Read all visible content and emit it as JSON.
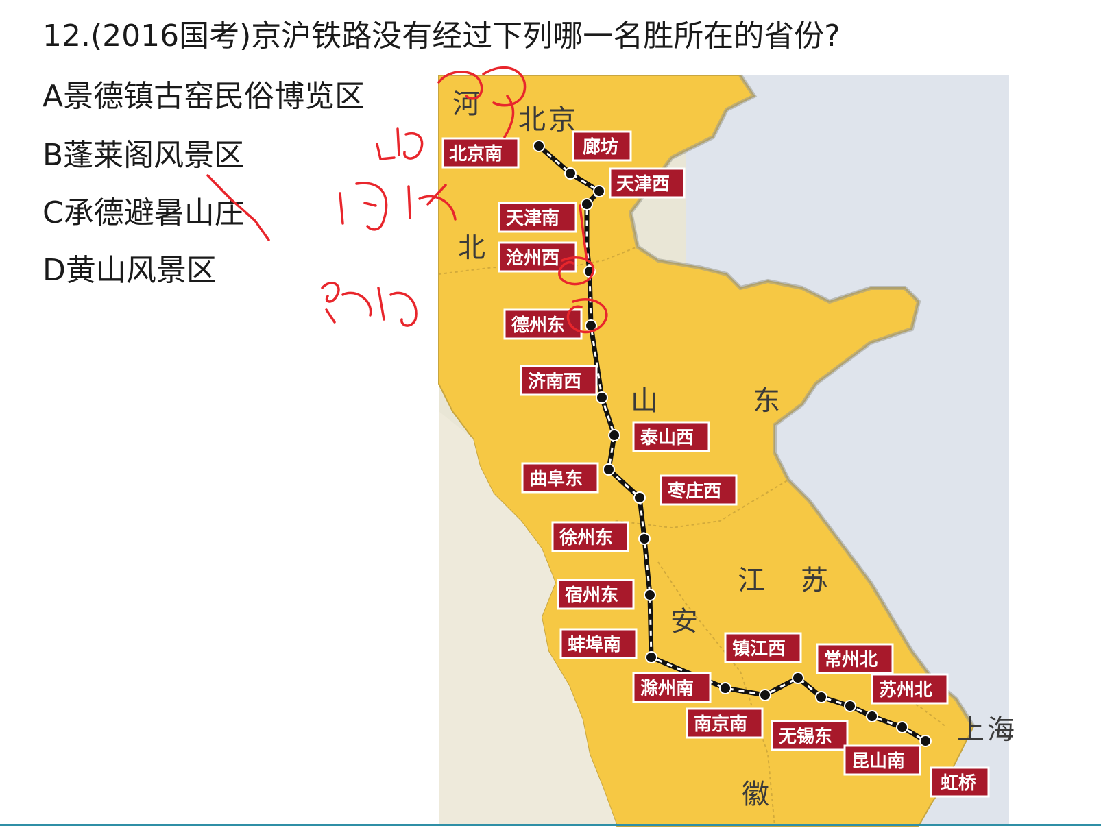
{
  "question": "12.(2016国考)京沪铁路没有经过下列哪一名胜所在的省份?",
  "options": [
    {
      "letter": "A",
      "text": "A景德镇古窑民俗博览区"
    },
    {
      "letter": "B",
      "text": "B蓬莱阁风景区"
    },
    {
      "letter": "C",
      "text": "C承德避暑山庄"
    },
    {
      "letter": "D",
      "text": "D黄山风景区"
    }
  ],
  "map": {
    "provinces": [
      {
        "id": "hebei-he",
        "text": "河"
      },
      {
        "id": "beijing-bei",
        "text": "北"
      },
      {
        "id": "beijing-jing",
        "text": "京"
      },
      {
        "id": "hebei-bei",
        "text": "北"
      },
      {
        "id": "shandong-shan",
        "text": "山"
      },
      {
        "id": "shandong-dong",
        "text": "东"
      },
      {
        "id": "jiangsu-jiang",
        "text": "江"
      },
      {
        "id": "jiangsu-su",
        "text": "苏"
      },
      {
        "id": "anhui-an",
        "text": "安"
      },
      {
        "id": "anhui-hui",
        "text": "徽"
      },
      {
        "id": "shanghai-shang",
        "text": "上"
      },
      {
        "id": "shanghai-hai",
        "text": "海"
      }
    ],
    "stations": [
      {
        "id": "beijingnan",
        "text": "北京南"
      },
      {
        "id": "langfang",
        "text": "廊坊"
      },
      {
        "id": "tianjinxi",
        "text": "天津西"
      },
      {
        "id": "tianjinnan",
        "text": "天津南"
      },
      {
        "id": "cangzhouxi",
        "text": "沧州西"
      },
      {
        "id": "dezhoudong",
        "text": "德州东"
      },
      {
        "id": "jinanxi",
        "text": "济南西"
      },
      {
        "id": "taishanxi",
        "text": "泰山西"
      },
      {
        "id": "qufudong",
        "text": "曲阜东"
      },
      {
        "id": "zaozhuangxi",
        "text": "枣庄西"
      },
      {
        "id": "xuzhoudong",
        "text": "徐州东"
      },
      {
        "id": "suzhoudong",
        "text": "宿州东"
      },
      {
        "id": "bengbunan",
        "text": "蚌埠南"
      },
      {
        "id": "chuzhounan",
        "text": "滁州南"
      },
      {
        "id": "nanjingnan",
        "text": "南京南"
      },
      {
        "id": "zhenjiangxi",
        "text": "镇江西"
      },
      {
        "id": "changzhoubei",
        "text": "常州北"
      },
      {
        "id": "wuxidong",
        "text": "无锡东"
      },
      {
        "id": "suzhoubei",
        "text": "苏州北"
      },
      {
        "id": "kunshannan",
        "text": "昆山南"
      },
      {
        "id": "hongqiao",
        "text": "虹桥"
      }
    ]
  },
  "colors": {
    "land": "#f6c844",
    "sea": "#dfe4ec",
    "other_land": "#e9e6d6",
    "label_bg": "#a8192b",
    "ink": "#e8262c"
  }
}
